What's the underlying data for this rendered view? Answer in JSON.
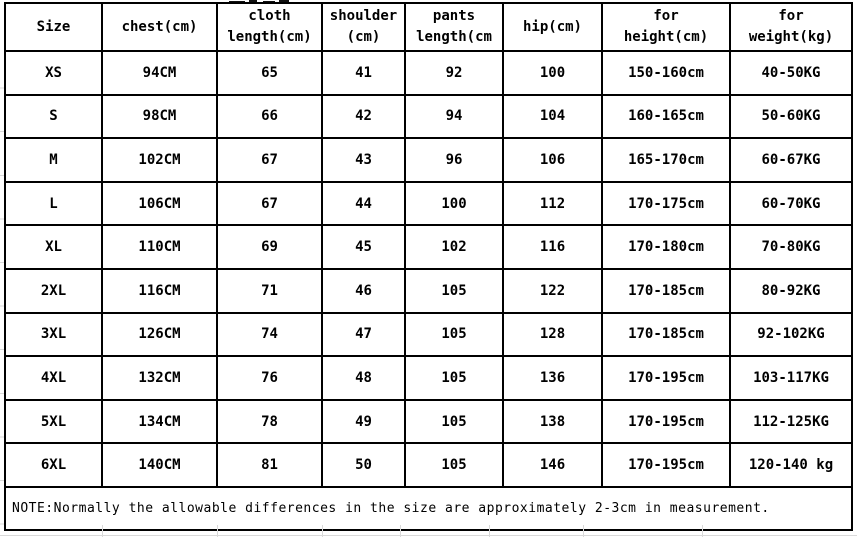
{
  "colors": {
    "background": "#ffffff",
    "table_border": "#000000",
    "text": "#000000",
    "faint_gridline": "#d9d9d9"
  },
  "chart_data": {
    "type": "table",
    "columns": [
      {
        "key": "size",
        "label": "Size"
      },
      {
        "key": "chest",
        "label": "chest(cm)"
      },
      {
        "key": "cloth-length",
        "label": "cloth\nlength(cm)"
      },
      {
        "key": "shoulder",
        "label": "shoulder\n(cm)"
      },
      {
        "key": "pants-length",
        "label": "pants\nlength(cm\n)"
      },
      {
        "key": "hip",
        "label": "hip(cm)"
      },
      {
        "key": "for-height",
        "label": "for\nheight(cm)"
      },
      {
        "key": "for-weight",
        "label": "for\nweight(kg)"
      }
    ],
    "rows": [
      [
        "XS",
        "94CM",
        "65",
        "41",
        "92",
        "100",
        "150-160cm",
        "40-50KG"
      ],
      [
        "S",
        "98CM",
        "66",
        "42",
        "94",
        "104",
        "160-165cm",
        "50-60KG"
      ],
      [
        "M",
        "102CM",
        "67",
        "43",
        "96",
        "106",
        "165-170cm",
        "60-67KG"
      ],
      [
        "L",
        "106CM",
        "67",
        "44",
        "100",
        "112",
        "170-175cm",
        "60-70KG"
      ],
      [
        "XL",
        "110CM",
        "69",
        "45",
        "102",
        "116",
        "170-180cm",
        "70-80KG"
      ],
      [
        "2XL",
        "116CM",
        "71",
        "46",
        "105",
        "122",
        "170-185cm",
        "80-92KG"
      ],
      [
        "3XL",
        "126CM",
        "74",
        "47",
        "105",
        "128",
        "170-185cm",
        "92-102KG"
      ],
      [
        "4XL",
        "132CM",
        "76",
        "48",
        "105",
        "136",
        "170-195cm",
        "103-117KG"
      ],
      [
        "5XL",
        "134CM",
        "78",
        "49",
        "105",
        "138",
        "170-195cm",
        "112-125KG"
      ],
      [
        "6XL",
        "140CM",
        "81",
        "50",
        "105",
        "146",
        "170-195cm",
        "120-140 kg"
      ]
    ],
    "note": "NOTE:Normally the allowable differences in the size are approximately 2-3cm in measurement."
  }
}
